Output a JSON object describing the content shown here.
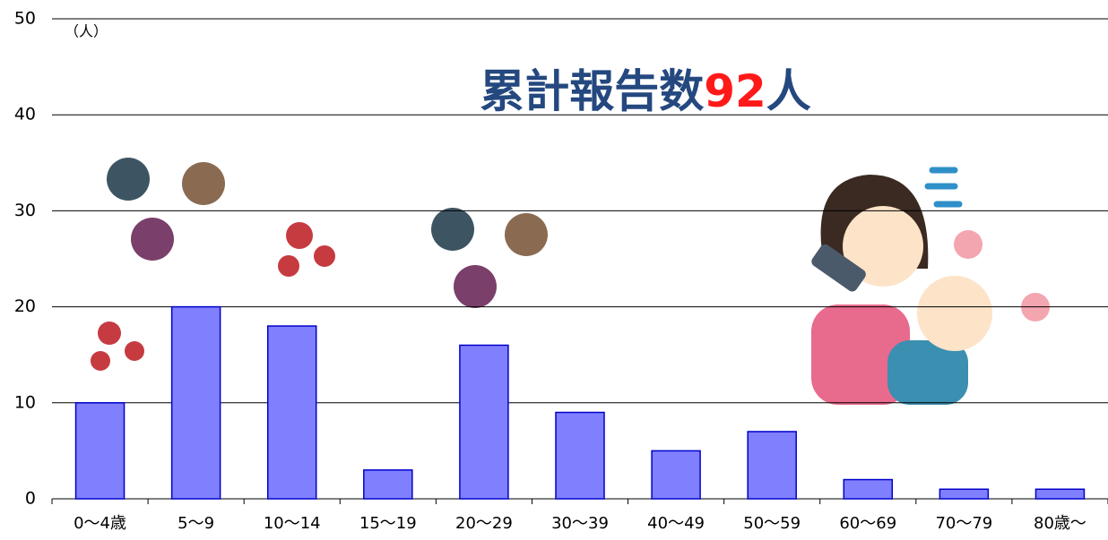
{
  "chart_data": {
    "type": "bar",
    "title_parts": [
      "累計報告数",
      "92",
      "人"
    ],
    "title_colors": [
      "#24487f",
      "#ff1a1a",
      "#24487f"
    ],
    "unit_label": "（人）",
    "categories": [
      "0〜4歳",
      "5〜9",
      "10〜14",
      "15〜19",
      "20〜29",
      "30〜39",
      "40〜49",
      "50〜59",
      "60〜69",
      "70〜79",
      "80歳〜"
    ],
    "values": [
      10,
      20,
      18,
      3,
      16,
      9,
      5,
      7,
      2,
      1,
      1
    ],
    "color": "#8080ff",
    "edge_color": "#0000cc",
    "ylim": [
      0,
      50
    ],
    "yticks": [
      0,
      10,
      20,
      30,
      40,
      50
    ],
    "grid": true
  }
}
